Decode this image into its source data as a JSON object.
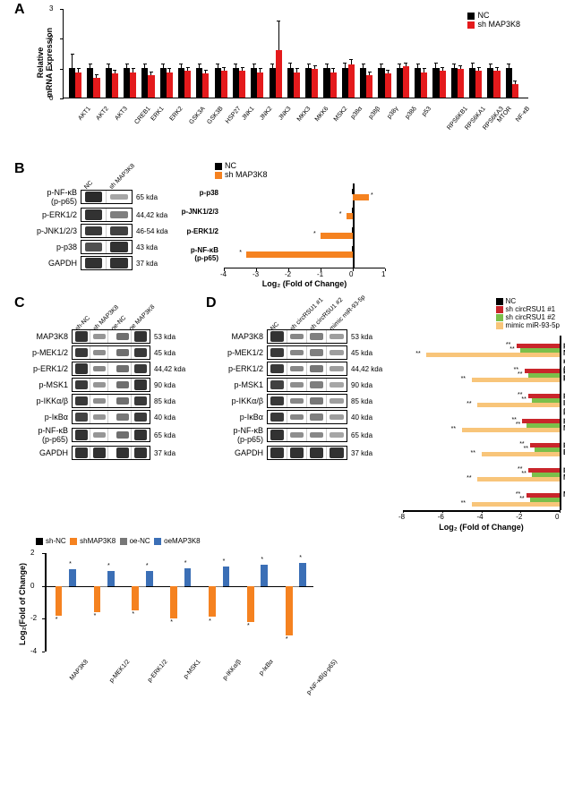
{
  "colors": {
    "nc_black": "#000000",
    "sh_map3k8": "#e41a1c",
    "sh_orange": "#f58220",
    "sh_circRSU1_1": "#c9252b",
    "sh_circRSU1_2": "#7bbf4a",
    "mimic": "#f8c57a",
    "oe_dark": "#555555",
    "oe_blue": "#3b6fb6",
    "grid": "#dddddd"
  },
  "panelA": {
    "label": "A",
    "ylabel": "Relative\nmRNA Expression",
    "ylim": [
      0,
      3
    ],
    "yticks": [
      0,
      1,
      2,
      3
    ],
    "legend": [
      {
        "name": "NC",
        "color": "#000000"
      },
      {
        "name": "sh MAP3K8",
        "color": "#e41a1c"
      }
    ],
    "categories": [
      "AKT1",
      "AKT2",
      "AKT3",
      "CREB1",
      "ERK1",
      "ERK2",
      "GSK3A",
      "GSK3B",
      "HSP27",
      "JNK1",
      "JNK2",
      "JNK3",
      "MKK3",
      "MKK6",
      "MSK2",
      "p38α",
      "p38β",
      "p38γ",
      "p38δ",
      "p53",
      "RPS6KB1",
      "RPS6KA1",
      "RPS6KA3",
      "MTOR",
      "NF-κB"
    ],
    "nc": [
      1,
      1,
      1,
      1,
      1,
      1,
      1,
      1,
      1,
      1,
      1,
      1,
      1,
      1,
      1,
      1,
      1,
      1,
      1,
      1,
      1,
      1,
      1,
      1,
      1
    ],
    "sh": [
      0.85,
      0.65,
      0.8,
      0.85,
      0.75,
      0.85,
      0.9,
      0.8,
      0.9,
      0.9,
      0.85,
      1.6,
      0.85,
      0.95,
      0.85,
      1.1,
      0.75,
      0.8,
      1.05,
      0.85,
      0.9,
      0.95,
      0.9,
      0.9,
      0.45
    ],
    "err_nc": [
      0.45,
      0.1,
      0.1,
      0.1,
      0.1,
      0.1,
      0.1,
      0.1,
      0.1,
      0.1,
      0.1,
      0.1,
      0.15,
      0.1,
      0.1,
      0.15,
      0.1,
      0.1,
      0.1,
      0.1,
      0.15,
      0.1,
      0.15,
      0.1,
      0.1
    ],
    "err_sh": [
      0.1,
      0.1,
      0.1,
      0.1,
      0.1,
      0.1,
      0.1,
      0.1,
      0.1,
      0.1,
      0.1,
      0.95,
      0.1,
      0.1,
      0.1,
      0.15,
      0.1,
      0.1,
      0.1,
      0.1,
      0.1,
      0.1,
      0.1,
      0.1,
      0.1
    ]
  },
  "panelB": {
    "label": "B",
    "blot_headers": [
      "NC",
      "sh MAP3K8"
    ],
    "rows": [
      {
        "name": "p-NF-κB\n(p-p65)",
        "kda": "65 kda",
        "intens": [
          0.95,
          0.15
        ]
      },
      {
        "name": "p-ERK1/2",
        "kda": "44,42 kda",
        "intens": [
          0.9,
          0.4
        ]
      },
      {
        "name": "p-JNK1/2/3",
        "kda": "46-54 kda",
        "intens": [
          0.85,
          0.8
        ]
      },
      {
        "name": "p-p38",
        "kda": "43 kda",
        "intens": [
          0.7,
          0.9
        ]
      },
      {
        "name": "GAPDH",
        "kda": "37 kda",
        "intens": [
          0.9,
          0.9
        ]
      }
    ],
    "legend": [
      {
        "name": "NC",
        "color": "#000000"
      },
      {
        "name": "sh MAP3K8",
        "color": "#f58220"
      }
    ],
    "chart": {
      "xlabel": "Log₂ (Fold of Change)",
      "xlim": [
        -4,
        1
      ],
      "xticks": [
        -4,
        -3,
        -2,
        -1,
        0,
        1
      ],
      "items": [
        {
          "name": "p-p38",
          "val": 0.5
        },
        {
          "name": "p-JNK1/2/3",
          "val": -0.2
        },
        {
          "name": "p-ERK1/2",
          "val": -1.0
        },
        {
          "name": "p-NF-κB\n(p-p65)",
          "val": -3.3
        }
      ]
    }
  },
  "panelC": {
    "label": "C",
    "headers_left": [
      "sh-NC",
      "sh MAP3K8"
    ],
    "headers_right": [
      "oe-NC",
      "oe MAP3K8"
    ],
    "rows": [
      {
        "name": "MAP3K8",
        "kda": "53 kda",
        "L": [
          0.9,
          0.25
        ],
        "R": [
          0.5,
          0.9
        ]
      },
      {
        "name": "p-MEK1/2",
        "kda": "45 kda",
        "L": [
          0.85,
          0.3
        ],
        "R": [
          0.5,
          0.85
        ]
      },
      {
        "name": "p-ERK1/2",
        "kda": "44,42 kda",
        "L": [
          0.9,
          0.35
        ],
        "R": [
          0.5,
          0.85
        ]
      },
      {
        "name": "p-MSK1",
        "kda": "90 kda",
        "L": [
          0.85,
          0.25
        ],
        "R": [
          0.5,
          0.9
        ]
      },
      {
        "name": "p-IKKα/β",
        "kda": "85 kda",
        "L": [
          0.85,
          0.3
        ],
        "R": [
          0.5,
          0.85
        ]
      },
      {
        "name": "p-IκBα",
        "kda": "40 kda",
        "L": [
          0.8,
          0.25
        ],
        "R": [
          0.45,
          0.85
        ]
      },
      {
        "name": "p-NF-κB\n(p-p65)",
        "kda": "65 kda",
        "L": [
          0.9,
          0.25
        ],
        "R": [
          0.5,
          0.9
        ]
      },
      {
        "name": "GAPDH",
        "kda": "37 kda",
        "L": [
          0.9,
          0.9
        ],
        "R": [
          0.9,
          0.9
        ]
      }
    ],
    "chart": {
      "ylabel": "Log₂(Fold of Change)",
      "ylim": [
        -4,
        2
      ],
      "yticks": [
        -4,
        -2,
        0,
        2
      ],
      "legend": [
        {
          "name": "sh-NC",
          "color": "#000000"
        },
        {
          "name": "shMAP3K8",
          "color": "#f58220"
        },
        {
          "name": "oe-NC",
          "color": "#777777"
        },
        {
          "name": "oeMAP3K8",
          "color": "#3b6fb6"
        }
      ],
      "categories": [
        "MAP3K8",
        "p-MEK1/2",
        "p-ERK1/2",
        "p-MSK1",
        "p-IKKα/β",
        "p-IκBα",
        "p-NF-κB(p-p65)"
      ],
      "sh": [
        -1.8,
        -1.6,
        -1.5,
        -2.0,
        -1.9,
        -2.2,
        -3.0
      ],
      "oe": [
        1.0,
        0.9,
        0.9,
        1.1,
        1.2,
        1.3,
        1.4
      ]
    }
  },
  "panelD": {
    "label": "D",
    "headers": [
      "NC",
      "sh circRSU1 #1",
      "sh circRSU1 #2",
      "mimic miR-93-5p"
    ],
    "rows": [
      {
        "name": "MAP3K8",
        "kda": "53 kda",
        "intens": [
          0.9,
          0.35,
          0.4,
          0.2
        ]
      },
      {
        "name": "p-MEK1/2",
        "kda": "45 kda",
        "intens": [
          0.85,
          0.35,
          0.4,
          0.2
        ]
      },
      {
        "name": "p-ERK1/2",
        "kda": "44,42 kda",
        "intens": [
          0.85,
          0.35,
          0.45,
          0.2
        ]
      },
      {
        "name": "p-MSK1",
        "kda": "90 kda",
        "intens": [
          0.8,
          0.3,
          0.4,
          0.15
        ]
      },
      {
        "name": "p-IKKα/β",
        "kda": "85 kda",
        "intens": [
          0.85,
          0.35,
          0.45,
          0.2
        ]
      },
      {
        "name": "p-IκBα",
        "kda": "40 kda",
        "intens": [
          0.85,
          0.35,
          0.4,
          0.2
        ]
      },
      {
        "name": "p-NF-κB\n(p-p65)",
        "kda": "65 kda",
        "intens": [
          0.9,
          0.3,
          0.35,
          0.15
        ]
      },
      {
        "name": "GAPDH",
        "kda": "37 kda",
        "intens": [
          0.9,
          0.9,
          0.9,
          0.9
        ]
      }
    ],
    "chart": {
      "xlabel": "Log₂ (Fold of Change)",
      "xlim": [
        -8,
        0
      ],
      "xticks": [
        -8,
        -6,
        -4,
        -2,
        0
      ],
      "legend": [
        {
          "name": "NC",
          "color": "#000000"
        },
        {
          "name": "sh circRSU1 #1",
          "color": "#c9252b"
        },
        {
          "name": "sh circRSU1 #2",
          "color": "#7bbf4a"
        },
        {
          "name": "mimic miR-93-5p",
          "color": "#f8c57a"
        }
      ],
      "items": [
        {
          "name": "p-NF-κB\n(p-p65)",
          "v1": -2.2,
          "v2": -2.0,
          "v3": -6.8
        },
        {
          "name": "p-IκBα",
          "v1": -1.8,
          "v2": -1.6,
          "v3": -4.5
        },
        {
          "name": "p-IKKα/β",
          "v1": -1.6,
          "v2": -1.4,
          "v3": -4.2
        },
        {
          "name": "p-MSK1",
          "v1": -1.9,
          "v2": -1.7,
          "v3": -5.0
        },
        {
          "name": "p-ERK1/2",
          "v1": -1.5,
          "v2": -1.3,
          "v3": -4.0
        },
        {
          "name": "p-MEK1/2",
          "v1": -1.6,
          "v2": -1.4,
          "v3": -4.2
        },
        {
          "name": "MAP3K8",
          "v1": -1.7,
          "v2": -1.5,
          "v3": -4.5
        }
      ]
    }
  }
}
